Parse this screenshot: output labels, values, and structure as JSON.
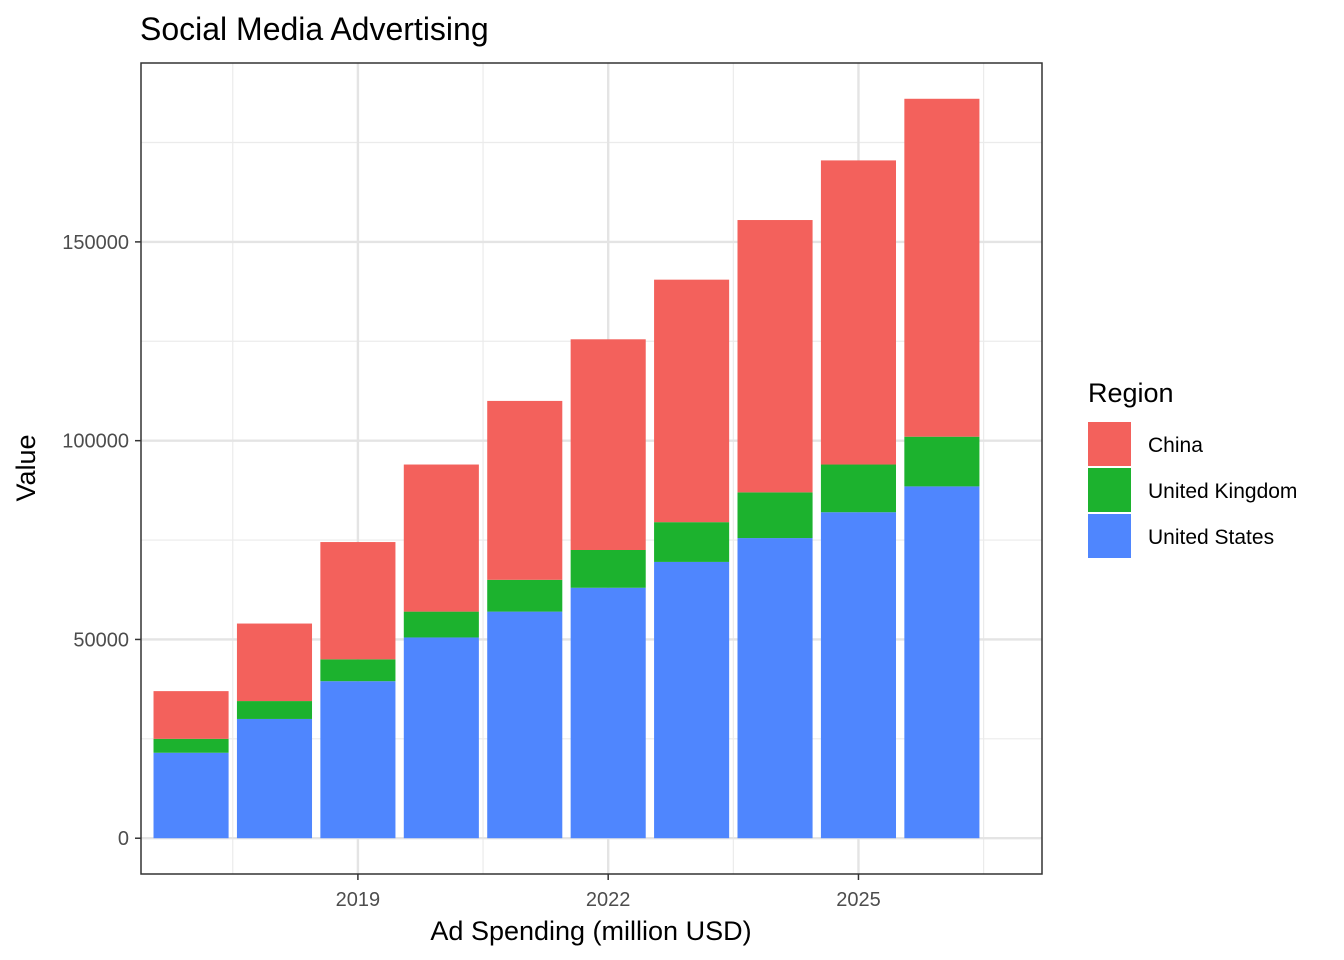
{
  "chart_data": {
    "type": "bar",
    "stacked": true,
    "title": "Social Media Advertising",
    "xlabel": "Ad Spending (million USD)",
    "ylabel": "Value",
    "x": [
      2017,
      2018,
      2019,
      2020,
      2021,
      2022,
      2023,
      2024,
      2025,
      2026
    ],
    "x_ticks": [
      2019,
      2022,
      2025
    ],
    "y_ticks": [
      0,
      50000,
      100000,
      150000
    ],
    "ylim": [
      -9000,
      195000
    ],
    "xlim": [
      2016.4,
      2027.2
    ],
    "grid": true,
    "legend": {
      "title": "Region",
      "position": "right"
    },
    "series": [
      {
        "name": "United States",
        "color": "#4f86fe",
        "values": [
          21500,
          30000,
          39500,
          50500,
          57000,
          63000,
          69500,
          75500,
          82000,
          88500
        ]
      },
      {
        "name": "United Kingdom",
        "color": "#1cb22e",
        "values": [
          3500,
          4500,
          5500,
          6500,
          8000,
          9500,
          10000,
          11500,
          12000,
          12500
        ]
      },
      {
        "name": "China",
        "color": "#f3615c",
        "values": [
          12000,
          19500,
          29500,
          37000,
          45000,
          53000,
          61000,
          68500,
          76500,
          85000
        ]
      }
    ],
    "legend_order": [
      "China",
      "United Kingdom",
      "United States"
    ]
  }
}
